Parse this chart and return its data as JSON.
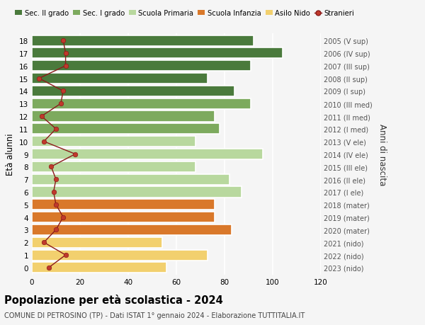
{
  "ages": [
    18,
    17,
    16,
    15,
    14,
    13,
    12,
    11,
    10,
    9,
    8,
    7,
    6,
    5,
    4,
    3,
    2,
    1,
    0
  ],
  "bar_values": [
    92,
    104,
    91,
    73,
    84,
    91,
    76,
    78,
    68,
    96,
    68,
    82,
    87,
    76,
    76,
    83,
    54,
    73,
    56
  ],
  "bar_colors": [
    "#4a7a3c",
    "#4a7a3c",
    "#4a7a3c",
    "#4a7a3c",
    "#4a7a3c",
    "#7daa5e",
    "#7daa5e",
    "#7daa5e",
    "#b8d89e",
    "#b8d89e",
    "#b8d89e",
    "#b8d89e",
    "#b8d89e",
    "#d9782a",
    "#d9782a",
    "#d9782a",
    "#f2d06e",
    "#f2d06e",
    "#f2d06e"
  ],
  "stranieri_values": [
    13,
    14,
    14,
    3,
    13,
    12,
    4,
    10,
    5,
    18,
    8,
    10,
    9,
    10,
    13,
    10,
    5,
    14,
    7
  ],
  "right_labels": [
    "2005 (V sup)",
    "2006 (IV sup)",
    "2007 (III sup)",
    "2008 (II sup)",
    "2009 (I sup)",
    "2010 (III med)",
    "2011 (II med)",
    "2012 (I med)",
    "2013 (V ele)",
    "2014 (IV ele)",
    "2015 (III ele)",
    "2016 (II ele)",
    "2017 (I ele)",
    "2018 (mater)",
    "2019 (mater)",
    "2020 (mater)",
    "2021 (nido)",
    "2022 (nido)",
    "2023 (nido)"
  ],
  "ylabel_left": "Età alunni",
  "ylabel_right": "Anni di nascita",
  "title_main": "Popolazione per età scolastica - 2024",
  "title_sub": "COMUNE DI PETROSINO (TP) - Dati ISTAT 1° gennaio 2024 - Elaborazione TUTTITALIA.IT",
  "legend_labels": [
    "Sec. II grado",
    "Sec. I grado",
    "Scuola Primaria",
    "Scuola Infanzia",
    "Asilo Nido",
    "Stranieri"
  ],
  "legend_colors": [
    "#4a7a3c",
    "#7daa5e",
    "#b8d89e",
    "#d9782a",
    "#f2d06e",
    "#c0392b"
  ],
  "xlim": [
    0,
    120
  ],
  "background_color": "#f5f5f5",
  "grid_color": "#ffffff",
  "bar_edge_color": "#ffffff",
  "stranieri_line_color": "#8b1a1a",
  "stranieri_dot_color": "#c0392b"
}
